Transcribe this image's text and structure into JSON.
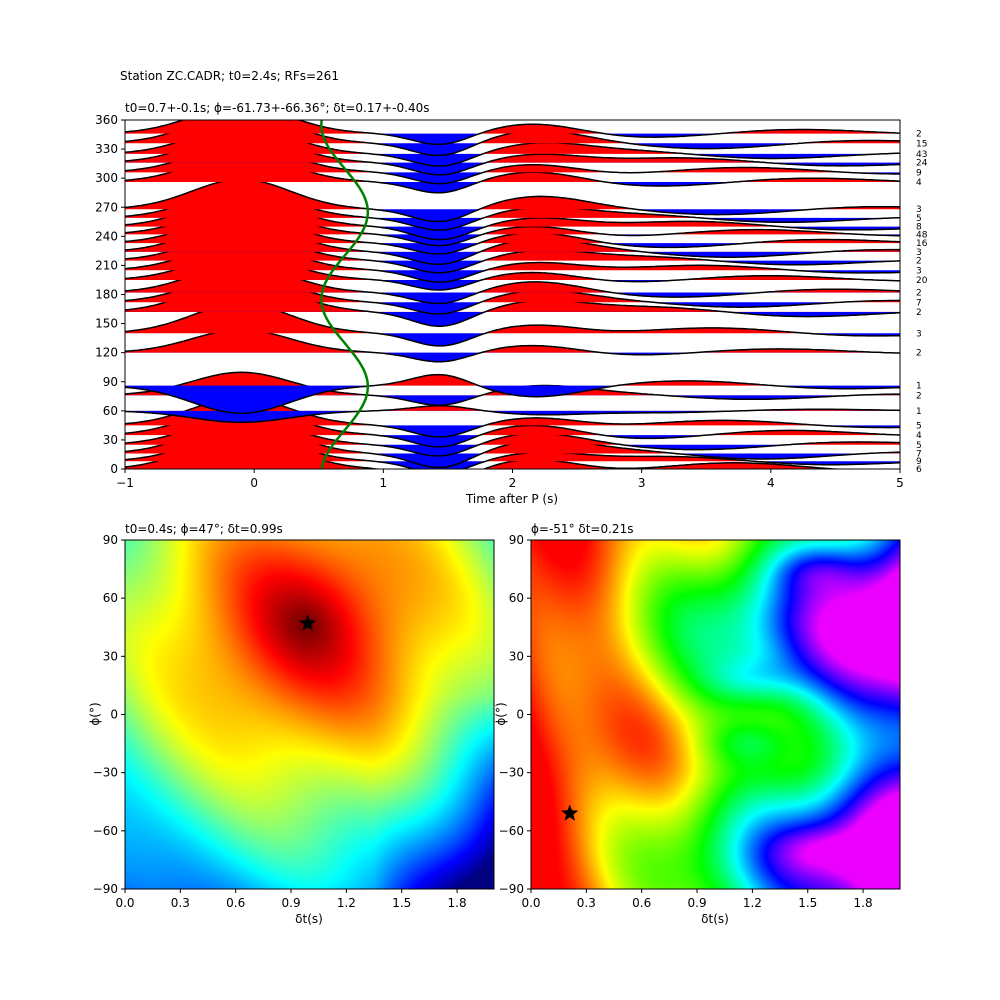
{
  "figure_title": "Station ZC.CADR; t0=2.4s; RFs=261",
  "chart_data": [
    {
      "type": "line",
      "subtitle": "t0=0.7+-0.1s; ϕ=-61.73+-66.36°; δt=0.17+-0.40s",
      "xlabel": "Time after P (s)",
      "ylabel": "",
      "xlim": [
        -1,
        5
      ],
      "ylim": [
        0,
        360
      ],
      "xticks": [
        "−1",
        "0",
        "1",
        "2",
        "3",
        "4",
        "5"
      ],
      "yticks": [
        "0",
        "30",
        "60",
        "90",
        "120",
        "150",
        "180",
        "210",
        "240",
        "270",
        "300",
        "330",
        "360"
      ],
      "fill_positive_color": "#ff0000",
      "fill_negative_color": "#0000ff",
      "trace_color": "#000000",
      "curve_color": "#008000",
      "traces": [
        {
          "baz": 0,
          "count": "6",
          "a": 0.15
        },
        {
          "baz": 8,
          "count": "9",
          "a": 0.12
        },
        {
          "baz": 16,
          "count": "7",
          "a": 0.14
        },
        {
          "baz": 25,
          "count": "5",
          "a": 0.12
        },
        {
          "baz": 35,
          "count": "4",
          "a": 0.13
        },
        {
          "baz": 45,
          "count": "5",
          "a": 0.12
        },
        {
          "baz": 60,
          "count": "1",
          "a": -0.05
        },
        {
          "baz": 76,
          "count": "2",
          "a": 0.1
        },
        {
          "baz": 86,
          "count": "1",
          "a": -0.12
        },
        {
          "baz": 120,
          "count": "2",
          "a": 0.1
        },
        {
          "baz": 140,
          "count": "3",
          "a": 0.13
        },
        {
          "baz": 162,
          "count": "2",
          "a": 0.14
        },
        {
          "baz": 172,
          "count": "7",
          "a": 0.12
        },
        {
          "baz": 182,
          "count": "2",
          "a": 0.12
        },
        {
          "baz": 195,
          "count": "20",
          "a": 0.11
        },
        {
          "baz": 205,
          "count": "3",
          "a": 0.12
        },
        {
          "baz": 215,
          "count": "2",
          "a": 0.12
        },
        {
          "baz": 224,
          "count": "3",
          "a": 0.13
        },
        {
          "baz": 233,
          "count": "16",
          "a": 0.12
        },
        {
          "baz": 242,
          "count": "48",
          "a": 0.12
        },
        {
          "baz": 250,
          "count": "8",
          "a": 0.13
        },
        {
          "baz": 259,
          "count": "5",
          "a": 0.12
        },
        {
          "baz": 268,
          "count": "3",
          "a": 0.13
        },
        {
          "baz": 296,
          "count": "4",
          "a": 0.12
        },
        {
          "baz": 306,
          "count": "9",
          "a": 0.12
        },
        {
          "baz": 316,
          "count": "24",
          "a": 0.12
        },
        {
          "baz": 325,
          "count": "43",
          "a": 0.12
        },
        {
          "baz": 336,
          "count": "15",
          "a": 0.13
        },
        {
          "baz": 346,
          "count": "2",
          "a": 0.12
        }
      ],
      "green_curve": {
        "t_mean": 0.7,
        "amplitude": 0.18
      }
    },
    {
      "type": "heatmap",
      "subtitle": "t0=0.4s; ϕ=47°; δt=0.99s",
      "xlabel": "δt(s)",
      "ylabel": "ϕ(°)",
      "xlim": [
        0,
        2
      ],
      "ylim": [
        -90,
        90
      ],
      "xticks": [
        "0.0",
        "0.3",
        "0.6",
        "0.9",
        "1.2",
        "1.5",
        "1.8"
      ],
      "yticks": [
        "−90",
        "−60",
        "−30",
        "0",
        "30",
        "60",
        "90"
      ],
      "colormap": "jet",
      "best": {
        "dt": 0.99,
        "phi": 47
      }
    },
    {
      "type": "heatmap",
      "subtitle": "ϕ=-51° δt=0.21s",
      "xlabel": "δt(s)",
      "ylabel": "ϕ(°)",
      "xlim": [
        0,
        2
      ],
      "ylim": [
        -90,
        90
      ],
      "xticks": [
        "0.0",
        "0.3",
        "0.6",
        "0.9",
        "1.2",
        "1.5",
        "1.8"
      ],
      "yticks": [
        "−90",
        "−60",
        "−30",
        "0",
        "30",
        "60",
        "90"
      ],
      "colormap": "hsv",
      "best": {
        "dt": 0.21,
        "phi": -51
      }
    }
  ]
}
